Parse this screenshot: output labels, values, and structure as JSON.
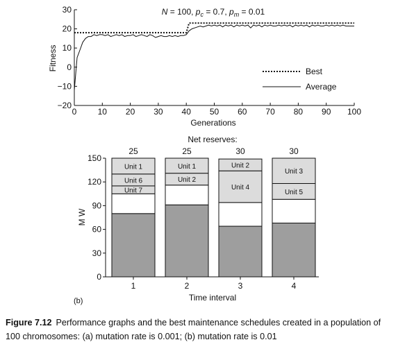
{
  "chart_data": [
    {
      "type": "line",
      "title": "N = 100, pₕ = 0.7, pₘ = 0.01",
      "title_parts": {
        "n_symbol": "N",
        "n_value": " = 100, ",
        "pc_symbol": "p",
        "pc_sub": "c",
        "pc_value": " = 0.7, ",
        "pm_symbol": "p",
        "pm_sub": "m",
        "pm_value": " = 0.01"
      },
      "xlabel": "Generations",
      "ylabel": "Fitness",
      "xlim": [
        0,
        100
      ],
      "ylim": [
        -20,
        30
      ],
      "xticks": [
        0,
        10,
        20,
        30,
        40,
        50,
        60,
        70,
        80,
        90,
        100
      ],
      "yticks": [
        -20,
        -10,
        0,
        10,
        20,
        30
      ],
      "grid": false,
      "legend_position": "right",
      "series": [
        {
          "name": "Best",
          "style": "dotted",
          "x": [
            0,
            1,
            40,
            41,
            100
          ],
          "y": [
            18,
            18,
            18,
            23,
            23
          ]
        },
        {
          "name": "Average",
          "style": "solid",
          "x": [
            0,
            1,
            2,
            3,
            4,
            5,
            6,
            7,
            8,
            9,
            10,
            11,
            12,
            13,
            14,
            15,
            16,
            17,
            18,
            19,
            20,
            21,
            22,
            23,
            24,
            25,
            26,
            27,
            28,
            29,
            30,
            31,
            32,
            33,
            34,
            35,
            36,
            37,
            38,
            39,
            40,
            41,
            42,
            43,
            44,
            45,
            46,
            47,
            48,
            49,
            50,
            51,
            52,
            53,
            54,
            55,
            56,
            57,
            58,
            59,
            60,
            61,
            62,
            63,
            64,
            65,
            66,
            67,
            68,
            69,
            70,
            71,
            72,
            73,
            74,
            75,
            76,
            77,
            78,
            79,
            80,
            81,
            82,
            83,
            84,
            85,
            86,
            87,
            88,
            89,
            90,
            91,
            92,
            93,
            94,
            95,
            96,
            97,
            98,
            99,
            100
          ],
          "y": [
            -12,
            5,
            9,
            13,
            15,
            16,
            16,
            17,
            16.5,
            17,
            17,
            16.5,
            17,
            16,
            16.5,
            17,
            16.5,
            17,
            16,
            16.5,
            16.5,
            17,
            16,
            16.5,
            17,
            16.5,
            16,
            17,
            16.5,
            15.5,
            16,
            16.5,
            16,
            16,
            16.5,
            16,
            16.5,
            16,
            16.5,
            16.5,
            17,
            19,
            20,
            20.5,
            21,
            21.5,
            21,
            21.5,
            22,
            21.5,
            22,
            21.5,
            22,
            21,
            22,
            21.5,
            22,
            21,
            22,
            21.5,
            22,
            21.5,
            22,
            20.5,
            22,
            21.5,
            22,
            21,
            22,
            21.5,
            22,
            21.5,
            21.5,
            22,
            21.5,
            22,
            21.5,
            22,
            21,
            22,
            21.5,
            22,
            21.5,
            22,
            21,
            22,
            21.5,
            22,
            21.5,
            21.5,
            22,
            21.5,
            22,
            21.5,
            22,
            21.5,
            22,
            21.5,
            21.5,
            21.5,
            21.5
          ]
        }
      ]
    },
    {
      "type": "bar",
      "stacked": true,
      "panel_label": "(b)",
      "header_label": "Net reserves:",
      "xlabel": "Time interval",
      "ylabel": "M W",
      "ylim": [
        0,
        150
      ],
      "yticks": [
        0,
        30,
        60,
        90,
        120,
        150
      ],
      "categories": [
        "1",
        "2",
        "3",
        "4"
      ],
      "net_reserves": [
        "25",
        "25",
        "30",
        "30"
      ],
      "load_values": [
        80,
        91,
        64,
        68
      ],
      "reserve_values": [
        25,
        25,
        30,
        30
      ],
      "colors": {
        "load": "#9e9e9e",
        "reserve": "#ffffff",
        "unit": "#dcdcdc"
      },
      "maintenance": [
        {
          "units": [
            {
              "label": "Unit 7",
              "mw": 10
            },
            {
              "label": "Unit 6",
              "mw": 15
            },
            {
              "label": "Unit 1",
              "mw": 20
            }
          ]
        },
        {
          "units": [
            {
              "label": "Unit 2",
              "mw": 15
            },
            {
              "label": "Unit 1",
              "mw": 19
            }
          ]
        },
        {
          "units": [
            {
              "label": "Unit 4",
              "mw": 40
            },
            {
              "label": "Unit 2",
              "mw": 15
            }
          ]
        },
        {
          "units": [
            {
              "label": "Unit 5",
              "mw": 20
            },
            {
              "label": "Unit 3",
              "mw": 32
            }
          ]
        }
      ]
    }
  ],
  "caption": {
    "label": "Figure 7.12",
    "text": "Performance graphs and the best maintenance schedules created in a population of 100 chromosomes: (a) mutation rate is 0.001; (b) mutation rate is 0.01"
  }
}
